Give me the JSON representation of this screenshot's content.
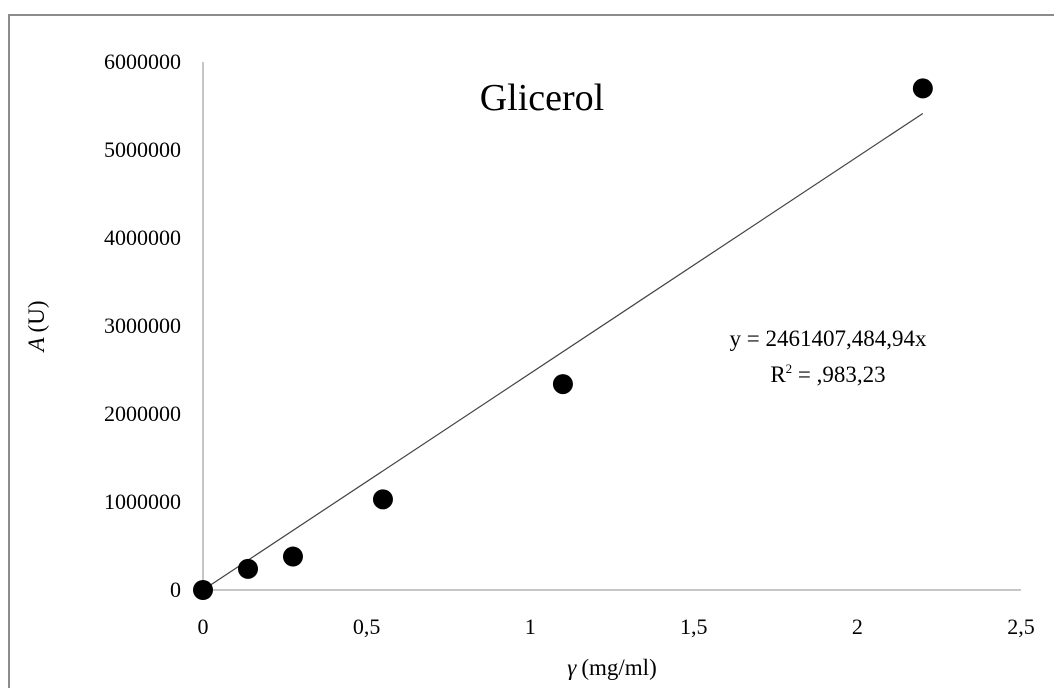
{
  "chart_data": {
    "type": "scatter",
    "title": "Glicerol",
    "xlabel": {
      "symbol": "γ",
      "unit": "(mg/ml)"
    },
    "ylabel": {
      "symbol": "A",
      "unit": "(U)"
    },
    "xlim": [
      0,
      2.5
    ],
    "ylim": [
      0,
      6000000
    ],
    "x_ticks": [
      0,
      0.5,
      1,
      1.5,
      2,
      2.5
    ],
    "x_tick_labels": [
      "0",
      "0,5",
      "1",
      "1,5",
      "2",
      "2,5"
    ],
    "y_ticks": [
      0,
      1000000,
      2000000,
      3000000,
      4000000,
      5000000,
      6000000
    ],
    "y_tick_labels": [
      "0",
      "1000000",
      "2000000",
      "3000000",
      "4000000",
      "5000000",
      "6000000"
    ],
    "grid": false,
    "points": {
      "x": [
        0,
        0.1375,
        0.275,
        0.55,
        1.1,
        2.2
      ],
      "y": [
        0,
        240000,
        380000,
        1030000,
        2340000,
        5700000
      ]
    },
    "trendline": {
      "slope": 2461407.48494,
      "intercept": 0,
      "x_range": [
        0,
        2.2
      ],
      "equation_text": "y = 2461407,484,94x",
      "r2_prefix": "R",
      "r2_sup": "2",
      "r2_value": " = ,983,23"
    },
    "colors": {
      "marker": "#000000",
      "line": "#404040",
      "axis": "#8c8c8c"
    }
  }
}
